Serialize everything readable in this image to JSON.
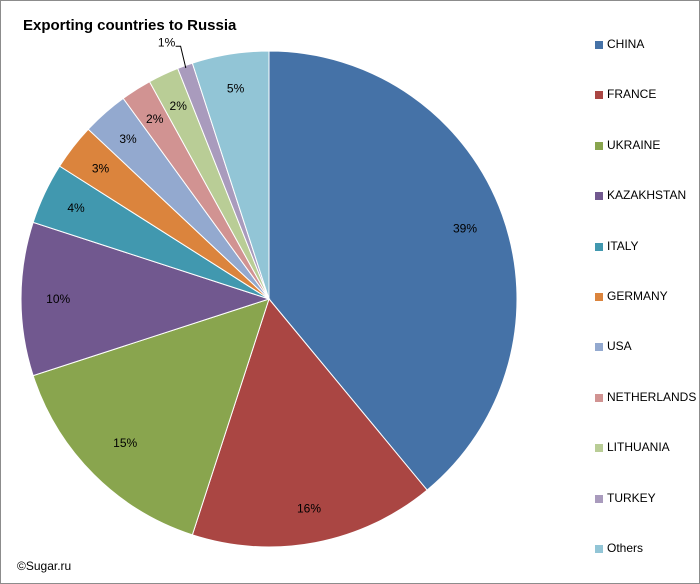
{
  "chart_data": {
    "type": "pie",
    "title": "Exporting countries to Russia",
    "categories": [
      "CHINA",
      "FRANCE",
      "UKRAINE",
      "KAZAKHSTAN",
      "ITALY",
      "GERMANY",
      "USA",
      "NETHERLANDS",
      "LITHUANIA",
      "TURKEY",
      "Others"
    ],
    "values": [
      39,
      16,
      15,
      10,
      4,
      3,
      3,
      2,
      2,
      1,
      5
    ],
    "labels": [
      "39%",
      "16%",
      "15%",
      "10%",
      "4%",
      "3%",
      "3%",
      "2%",
      "2%",
      "1%",
      "5%"
    ],
    "colors": [
      "#4572a7",
      "#aa4643",
      "#89a54e",
      "#71588f",
      "#4198af",
      "#db843d",
      "#93a9cf",
      "#d19392",
      "#b9cd96",
      "#a99bbd",
      "#92c5d6"
    ],
    "legend_position": "right"
  },
  "footer": {
    "copyright": "©Sugar.ru"
  }
}
